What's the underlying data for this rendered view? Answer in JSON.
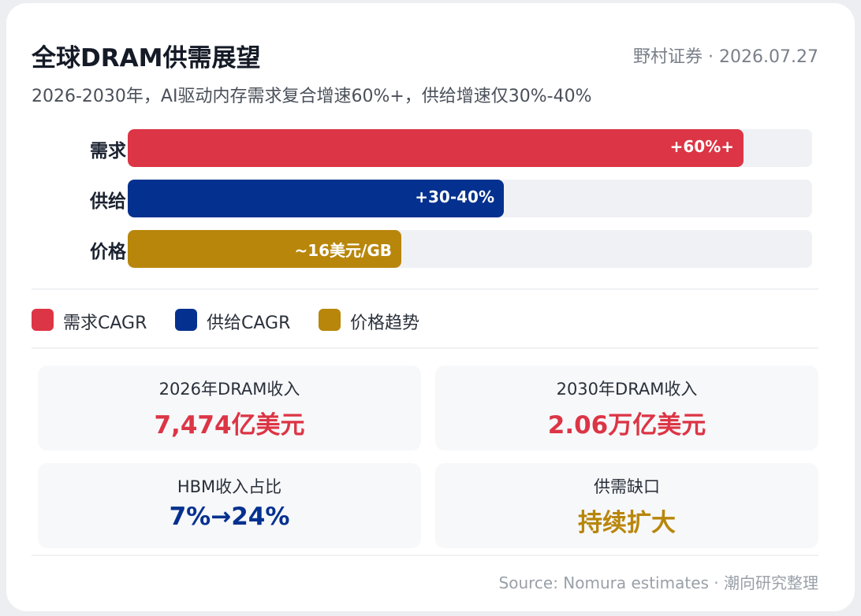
{
  "title": "全球DRAM供需展望",
  "source_date": "野村证券 · 2026.07.27",
  "subtitle": "2026-2030年，AI驱动内存需求复合增速60%+，供给增速仅30%-40%",
  "chart_data": {
    "type": "bar",
    "orientation": "horizontal",
    "categories": [
      "需求",
      "供给",
      "价格"
    ],
    "values": [
      0.9,
      0.55,
      0.4
    ],
    "value_labels": [
      "+60%+",
      "+30-40%",
      "~16美元/GB"
    ],
    "colors": [
      "#dc3545",
      "#04318f",
      "#b8860b"
    ],
    "legend": [
      {
        "label": "需求CAGR",
        "color": "#dc3545"
      },
      {
        "label": "供给CAGR",
        "color": "#04318f"
      },
      {
        "label": "价格趋势",
        "color": "#b8860b"
      }
    ],
    "legend_position": "bottom",
    "grid": false
  },
  "stats": [
    {
      "label": "2026年DRAM收入",
      "value": "7,474亿美元",
      "color": "#dc3545"
    },
    {
      "label": "2030年DRAM收入",
      "value": "2.06万亿美元",
      "color": "#dc3545"
    },
    {
      "label": "HBM收入占比",
      "value": "7%→24%",
      "color": "#04318f"
    },
    {
      "label": "供需缺口",
      "value": "持续扩大",
      "color": "#b8860b"
    }
  ],
  "footer": "Source: Nomura estimates · 潮向研究整理"
}
